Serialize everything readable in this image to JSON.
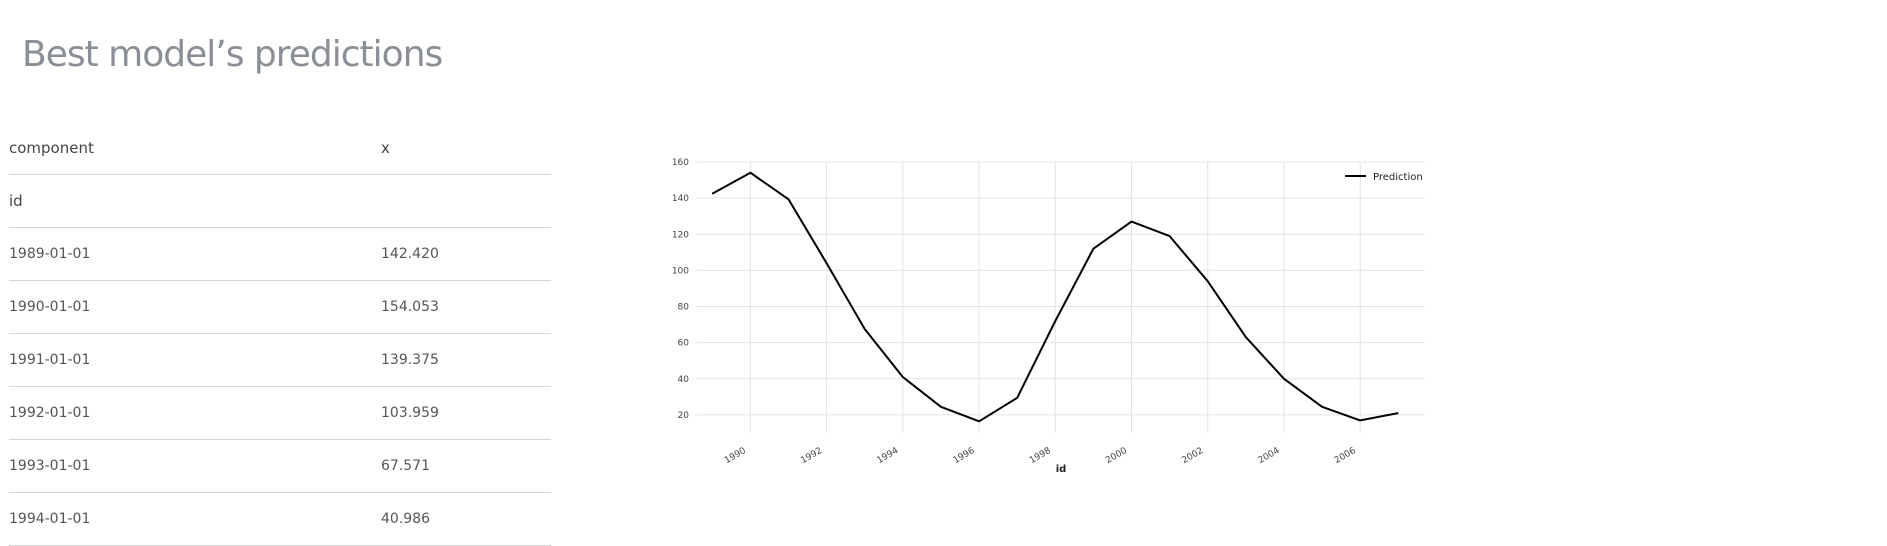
{
  "title": "Best model’s predictions",
  "table": {
    "headers": [
      "component",
      "x"
    ],
    "index_name": "id",
    "rows": [
      [
        "1989-01-01",
        "142.420"
      ],
      [
        "1990-01-01",
        "154.053"
      ],
      [
        "1991-01-01",
        "139.375"
      ],
      [
        "1992-01-01",
        "103.959"
      ],
      [
        "1993-01-01",
        "67.571"
      ],
      [
        "1994-01-01",
        "40.986"
      ]
    ]
  },
  "chart_data": {
    "type": "line",
    "title": "",
    "xlabel": "id",
    "ylabel": "",
    "xlim": [
      1988.6,
      2007.7
    ],
    "ylim": [
      10,
      160
    ],
    "yticks": [
      20,
      40,
      60,
      80,
      100,
      120,
      140,
      160
    ],
    "xticks": [
      "1990",
      "1992",
      "1994",
      "1996",
      "1998",
      "2000",
      "2002",
      "2004",
      "2006"
    ],
    "grid": true,
    "legend": "top-right",
    "series": [
      {
        "name": "Prediction",
        "color": "#000000",
        "x": [
          "1989-01-01",
          "1990-01-01",
          "1991-01-01",
          "1992-01-01",
          "1993-01-01",
          "1994-01-01",
          "1995-01-01",
          "1996-01-01",
          "1997-01-01",
          "1998-01-01",
          "1999-01-01",
          "2000-01-01",
          "2001-01-01",
          "2002-01-01",
          "2003-01-01",
          "2004-01-01",
          "2005-01-01",
          "2006-01-01",
          "2007-01-01"
        ],
        "values": [
          142.42,
          154.053,
          139.375,
          103.959,
          67.571,
          40.986,
          24.5,
          16.5,
          29.5,
          72,
          112,
          127,
          119,
          94,
          63,
          40,
          24.5,
          17,
          21
        ]
      }
    ]
  }
}
